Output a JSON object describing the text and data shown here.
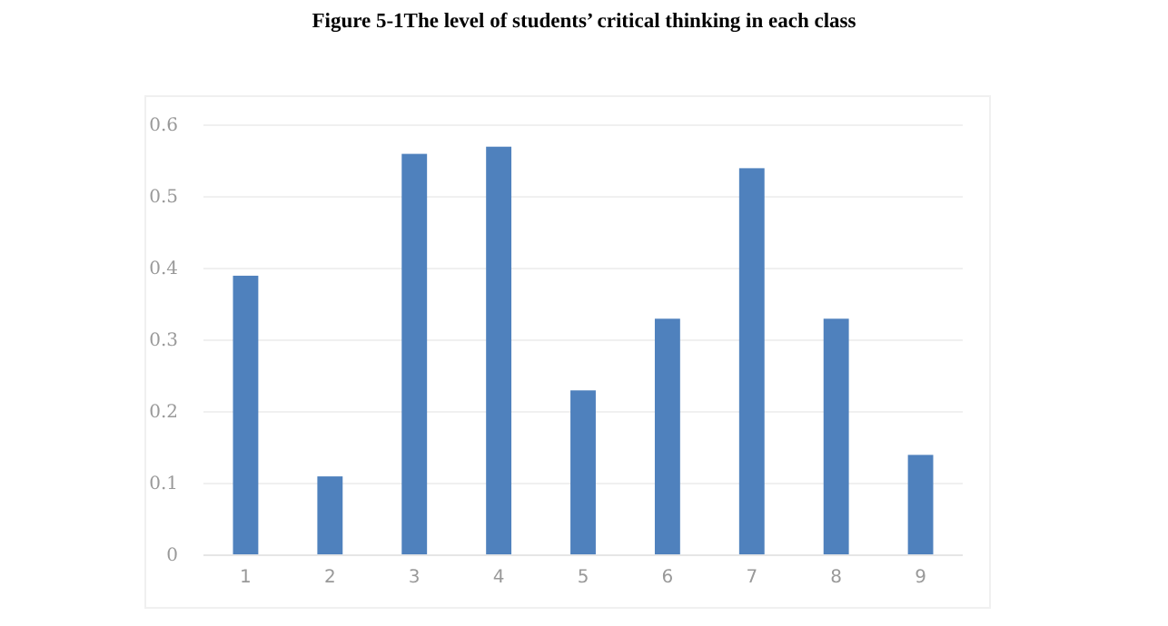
{
  "chart_data": {
    "type": "bar",
    "title": "Figure 5-1The level of students’ critical thinking in each class",
    "categories": [
      "1",
      "2",
      "3",
      "4",
      "5",
      "6",
      "7",
      "8",
      "9"
    ],
    "values": [
      0.39,
      0.11,
      0.56,
      0.57,
      0.23,
      0.33,
      0.54,
      0.33,
      0.14
    ],
    "color": "#4f81bd",
    "ylim": [
      0,
      0.6
    ],
    "yticks": [
      {
        "value": 0,
        "label": "0"
      },
      0.1,
      0.2,
      0.3,
      0.4,
      0.5,
      0.6
    ],
    "grid": "y"
  }
}
